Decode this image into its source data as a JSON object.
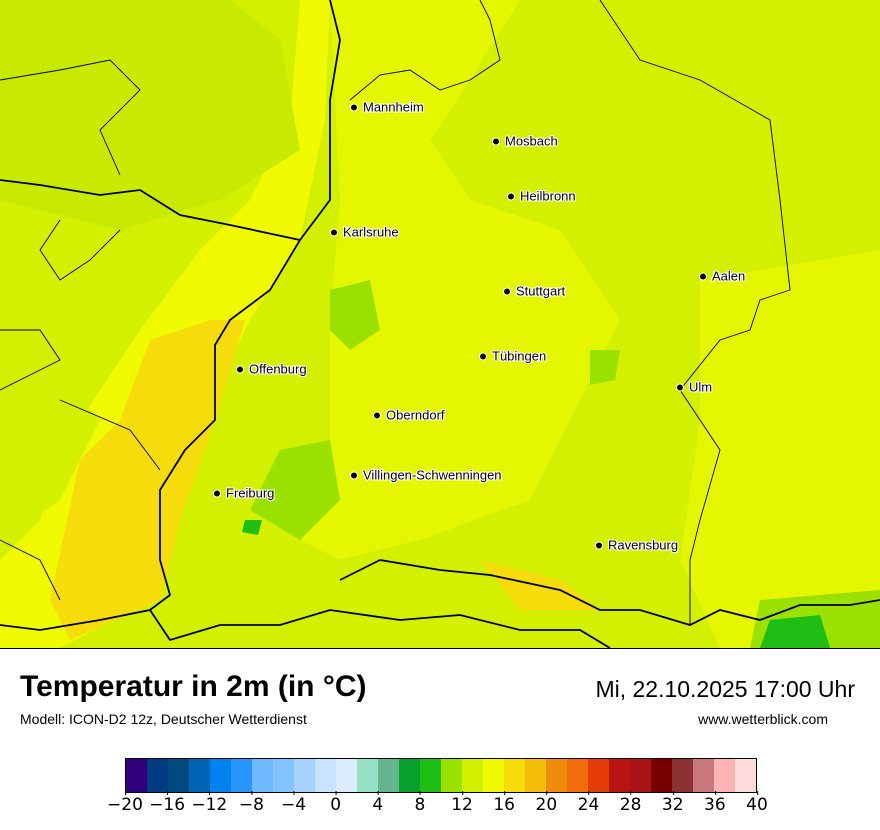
{
  "title": "Temperatur in 2m (in °C)",
  "subtitle": "Modell: ICON-D2 12z, Deutscher Wetterdienst",
  "datetime": "Mi, 22.10.2025 17:00 Uhr",
  "website": "www.wetterblick.com",
  "cities": [
    {
      "name": "Mannheim"
    },
    {
      "name": "Mosbach"
    },
    {
      "name": "Heilbronn"
    },
    {
      "name": "Karlsruhe"
    },
    {
      "name": "Stuttgart"
    },
    {
      "name": "Aalen"
    },
    {
      "name": "Tübingen"
    },
    {
      "name": "Offenburg"
    },
    {
      "name": "Ulm"
    },
    {
      "name": "Oberndorf"
    },
    {
      "name": "Villingen-Schwenningen"
    },
    {
      "name": "Freiburg"
    },
    {
      "name": "Ravensburg"
    }
  ],
  "colorbar": {
    "min": -20,
    "max": 40,
    "step": 2,
    "colors": [
      "#32007f",
      "#003c82",
      "#004a80",
      "#0064b4",
      "#0082f0",
      "#2896ff",
      "#6eb9ff",
      "#82c3ff",
      "#a5d2ff",
      "#c8e3ff",
      "#dcebff",
      "#96e1c3",
      "#64b48c",
      "#06a02d",
      "#1ebe14",
      "#9be100",
      "#d2f000",
      "#f0fa00",
      "#f5dc0a",
      "#f5be0a",
      "#f08c0a",
      "#f06e0a",
      "#e63c0a",
      "#b91414",
      "#aa1414",
      "#780000",
      "#8c3232",
      "#c87878",
      "#ffb4b4",
      "#ffdcdc"
    ],
    "tick_labels": [
      "−20",
      "−16",
      "−12",
      "−8",
      "−4",
      "0",
      "4",
      "8",
      "12",
      "16",
      "20",
      "24",
      "28",
      "32",
      "36",
      "40"
    ]
  }
}
